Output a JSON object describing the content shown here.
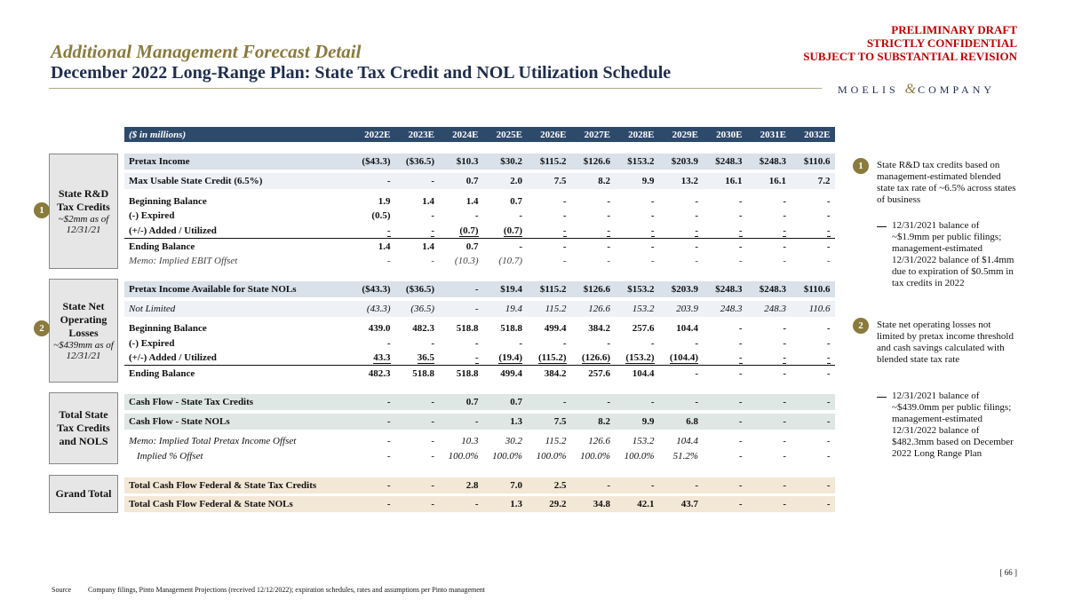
{
  "header": {
    "title": "Additional Management Forecast Detail",
    "subtitle": "December 2022 Long-Range Plan: State Tax Credit and NOL Utilization Schedule",
    "confidential": [
      "PRELIMINARY DRAFT",
      "STRICTLY CONFIDENTIAL",
      "SUBJECT TO SUBSTANTIAL REVISION"
    ],
    "logo": [
      "MOELIS",
      "&",
      "COMPANY"
    ]
  },
  "table": {
    "unit": "($ in millions)",
    "years": [
      "2022E",
      "2023E",
      "2024E",
      "2025E",
      "2026E",
      "2027E",
      "2028E",
      "2029E",
      "2030E",
      "2031E",
      "2032E"
    ],
    "sections": [
      {
        "label": "State R&D Tax Credits",
        "note": "~$2mm as of 12/31/21",
        "badge": "1",
        "rows": [
          {
            "label": "Pretax Income",
            "values": [
              "($43.3)",
              "($36.5)",
              "$10.3",
              "$30.2",
              "$115.2",
              "$126.6",
              "$153.2",
              "$203.9",
              "$248.3",
              "$248.3",
              "$110.6"
            ]
          },
          {
            "label": "Max Usable State Credit (6.5%)",
            "values": [
              "-",
              "-",
              "0.7",
              "2.0",
              "7.5",
              "8.2",
              "9.9",
              "13.2",
              "16.1",
              "16.1",
              "7.2"
            ]
          },
          {
            "label": "Beginning Balance",
            "values": [
              "1.9",
              "1.4",
              "1.4",
              "0.7",
              "-",
              "-",
              "-",
              "-",
              "-",
              "-",
              "-"
            ]
          },
          {
            "label": "(-) Expired",
            "values": [
              "(0.5)",
              "-",
              "-",
              "-",
              "-",
              "-",
              "-",
              "-",
              "-",
              "-",
              "-"
            ]
          },
          {
            "label": "(+/-) Added / Utilized",
            "values": [
              "-",
              "-",
              "(0.7)",
              "(0.7)",
              "-",
              "-",
              "-",
              "-",
              "-",
              "-",
              "-"
            ]
          },
          {
            "label": "Ending Balance",
            "values": [
              "1.4",
              "1.4",
              "0.7",
              "-",
              "-",
              "-",
              "-",
              "-",
              "-",
              "-",
              "-"
            ]
          },
          {
            "label": "Memo: Implied EBIT Offset",
            "values": [
              "-",
              "-",
              "(10.3)",
              "(10.7)",
              "-",
              "-",
              "-",
              "-",
              "-",
              "-",
              "-"
            ]
          }
        ]
      },
      {
        "label": "State Net Operating Losses",
        "note": "~$439mm as of 12/31/21",
        "badge": "2",
        "rows": [
          {
            "label": "Pretax Income Available for State NOLs",
            "values": [
              "($43.3)",
              "($36.5)",
              "-",
              "$19.4",
              "$115.2",
              "$126.6",
              "$153.2",
              "$203.9",
              "$248.3",
              "$248.3",
              "$110.6"
            ]
          },
          {
            "label": "Not Limited",
            "values": [
              "(43.3)",
              "(36.5)",
              "-",
              "19.4",
              "115.2",
              "126.6",
              "153.2",
              "203.9",
              "248.3",
              "248.3",
              "110.6"
            ]
          },
          {
            "label": "Beginning Balance",
            "values": [
              "439.0",
              "482.3",
              "518.8",
              "518.8",
              "499.4",
              "384.2",
              "257.6",
              "104.4",
              "-",
              "-",
              "-"
            ]
          },
          {
            "label": "(-) Expired",
            "values": [
              "-",
              "-",
              "-",
              "-",
              "-",
              "-",
              "-",
              "-",
              "-",
              "-",
              "-"
            ]
          },
          {
            "label": "(+/-) Added / Utilized",
            "values": [
              "43.3",
              "36.5",
              "-",
              "(19.4)",
              "(115.2)",
              "(126.6)",
              "(153.2)",
              "(104.4)",
              "-",
              "-",
              "-"
            ]
          },
          {
            "label": "Ending Balance",
            "values": [
              "482.3",
              "518.8",
              "518.8",
              "499.4",
              "384.2",
              "257.6",
              "104.4",
              "-",
              "-",
              "-",
              "-"
            ]
          }
        ]
      },
      {
        "label": "Total State Tax Credits and NOLS",
        "rows": [
          {
            "label": "Cash Flow - State Tax Credits",
            "values": [
              "-",
              "-",
              "0.7",
              "0.7",
              "-",
              "-",
              "-",
              "-",
              "-",
              "-",
              "-"
            ]
          },
          {
            "label": "Cash Flow - State NOLs",
            "values": [
              "-",
              "-",
              "-",
              "1.3",
              "7.5",
              "8.2",
              "9.9",
              "6.8",
              "-",
              "-",
              "-"
            ]
          },
          {
            "label": "Memo: Implied Total Pretax Income Offset",
            "values": [
              "-",
              "-",
              "10.3",
              "30.2",
              "115.2",
              "126.6",
              "153.2",
              "104.4",
              "-",
              "-",
              "-"
            ]
          },
          {
            "label": "Implied % Offset",
            "values": [
              "-",
              "-",
              "100.0%",
              "100.0%",
              "100.0%",
              "100.0%",
              "100.0%",
              "51.2%",
              "-",
              "-",
              "-"
            ]
          }
        ]
      },
      {
        "label": "Grand Total",
        "rows": [
          {
            "label": "Total Cash Flow Federal & State Tax Credits",
            "values": [
              "-",
              "-",
              "2.8",
              "7.0",
              "2.5",
              "-",
              "-",
              "-",
              "-",
              "-",
              "-"
            ]
          },
          {
            "label": "Total Cash Flow Federal & State NOLs",
            "values": [
              "-",
              "-",
              "-",
              "1.3",
              "29.2",
              "34.8",
              "42.1",
              "43.7",
              "-",
              "-",
              "-"
            ]
          }
        ]
      }
    ]
  },
  "notes": [
    {
      "badge": "1",
      "text": "State R&D tax credits based on management-estimated blended state tax rate of ~6.5% across states of business",
      "sub": "12/31/2021 balance of ~$1.9mm per public filings; management-estimated 12/31/2022 balance of $1.4mm due to expiration of $0.5mm in tax credits in 2022"
    },
    {
      "badge": "2",
      "text": "State net operating losses not limited by pretax income threshold and cash savings calculated with blended state tax rate",
      "sub": "12/31/2021 balance of ~$439.0mm per public filings; management-estimated 12/31/2022 balance of $482.3mm based on December 2022 Long Range Plan"
    }
  ],
  "footer": {
    "source_label": "Source",
    "source": "Company filings, Pinto Management Projections (received 12/12/2022); expiration schedules, rates and assumptions per Pinto management",
    "page": "[ 66 ]"
  }
}
